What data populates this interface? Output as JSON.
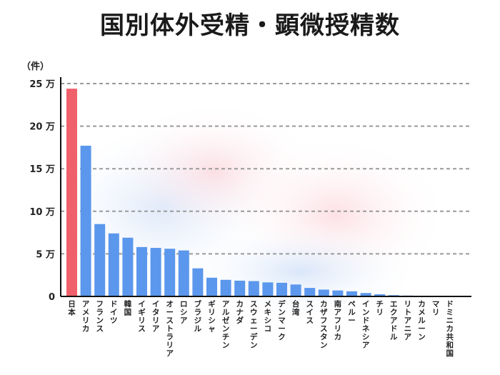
{
  "chart_data": {
    "type": "bar",
    "title": "国別体外受精・顕微授精数",
    "ylabel": "（件）",
    "ylim": [
      0,
      250000
    ],
    "yticks": [
      {
        "value": 0,
        "label": "0"
      },
      {
        "value": 50000,
        "label": "5 万"
      },
      {
        "value": 100000,
        "label": "10 万"
      },
      {
        "value": 150000,
        "label": "15 万"
      },
      {
        "value": 200000,
        "label": "20 万"
      },
      {
        "value": 250000,
        "label": "25 万"
      }
    ],
    "grid": true,
    "categories": [
      "日本",
      "アメリカ",
      "フランス",
      "ドイツ",
      "韓国",
      "イギリス",
      "イタリア",
      "オーストラリア",
      "ロシア",
      "ブラジル",
      "ギリシャ",
      "アルゼンチン",
      "カナダ",
      "スウェーデン",
      "メキシコ",
      "デンマーク",
      "台湾",
      "スイス",
      "カザフスタン",
      "南アフリカ",
      "ペルー",
      "インドネシア",
      "チリ",
      "エクアドル",
      "リトアニア",
      "カメルーン",
      "マリ",
      "ドミニカ共和国"
    ],
    "values": [
      244000,
      177000,
      85000,
      74000,
      69000,
      58000,
      57000,
      56000,
      54000,
      33000,
      22000,
      19500,
      18500,
      18000,
      16500,
      16000,
      14000,
      10000,
      8000,
      7000,
      6000,
      4000,
      2500,
      1500,
      1000,
      500,
      200,
      100
    ],
    "highlight_index": 0,
    "colors": {
      "bar": "#5b97ec",
      "highlight": "#f0606a",
      "highlight_label": "#e8414d",
      "grid": "#9a9a9a"
    }
  }
}
